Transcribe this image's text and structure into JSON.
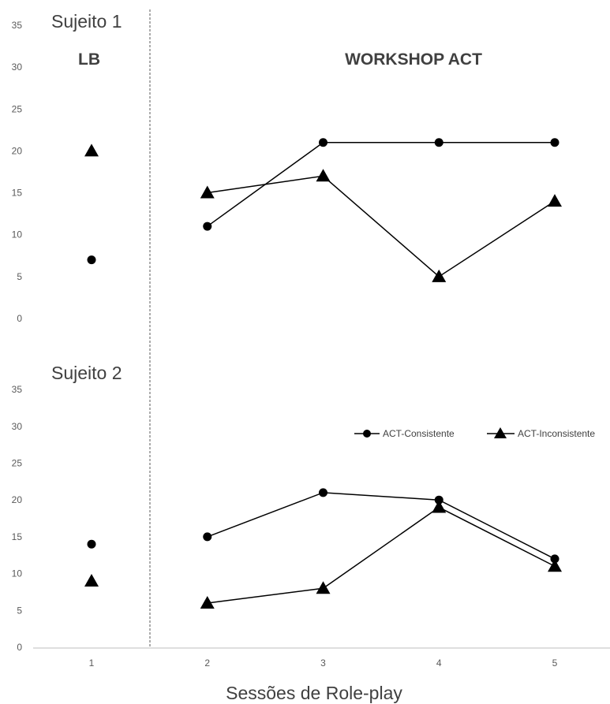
{
  "chart_data": [
    {
      "type": "line",
      "panel_label": "Sujeito 1",
      "phases": [
        {
          "label": "LB",
          "sessions": [
            1
          ]
        },
        {
          "label": "WORKSHOP ACT",
          "sessions": [
            2,
            3,
            4,
            5
          ]
        }
      ],
      "phase_change_after_session": 1,
      "x": [
        1,
        2,
        3,
        4,
        5
      ],
      "series": [
        {
          "name": "ACT-Consistente",
          "marker": "circle",
          "values": [
            7,
            11,
            21,
            21,
            21
          ]
        },
        {
          "name": "ACT-Inconsistente",
          "marker": "triangle",
          "values": [
            20,
            15,
            17,
            5,
            14
          ]
        }
      ],
      "ylim": [
        0,
        35
      ],
      "yticks": [
        0,
        5,
        10,
        15,
        20,
        25,
        30,
        35
      ],
      "grid": false
    },
    {
      "type": "line",
      "panel_label": "Sujeito 2",
      "phase_change_after_session": 1,
      "x": [
        1,
        2,
        3,
        4,
        5
      ],
      "series": [
        {
          "name": "ACT-Consistente",
          "marker": "circle",
          "values": [
            14,
            15,
            21,
            20,
            12
          ]
        },
        {
          "name": "ACT-Inconsistente",
          "marker": "triangle",
          "values": [
            9,
            6,
            8,
            19,
            11
          ]
        }
      ],
      "ylim": [
        0,
        35
      ],
      "yticks": [
        0,
        5,
        10,
        15,
        20,
        25,
        30,
        35
      ],
      "xticks": [
        1,
        2,
        3,
        4,
        5
      ],
      "xlabel": "Sessões de Role-play",
      "legend": {
        "placement": "right",
        "entries": [
          {
            "label": "ACT-Consistente",
            "marker": "circle"
          },
          {
            "label": "ACT-Inconsistente",
            "marker": "triangle"
          }
        ]
      },
      "grid": false
    }
  ],
  "colors": {
    "series": "#000000",
    "axis": "#bfbfbf",
    "divider": "#595959",
    "text": "#404040",
    "ticks": "#595959"
  }
}
